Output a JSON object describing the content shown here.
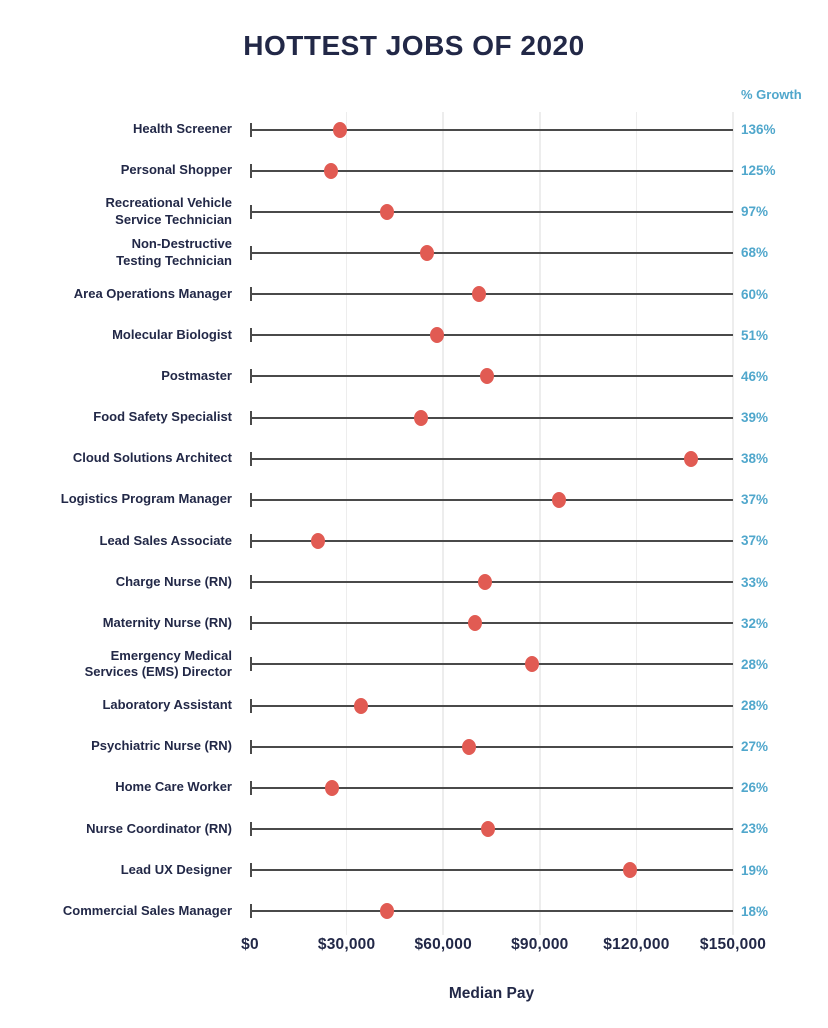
{
  "colors": {
    "navy": "#222847",
    "growth_blue": "#50a7cc",
    "dot_red": "#e15b53",
    "row_line_gray": "#4a4a4a",
    "gridline_gray": "#ededed",
    "background": "#ffffff"
  },
  "chart_data": {
    "type": "scatter",
    "subtype": "lollipop-dot-plot",
    "title": "HOTTEST JOBS OF 2020",
    "xlabel": "Median Pay",
    "right_column_header": "% Growth",
    "xlim": [
      0,
      150000
    ],
    "grid": true,
    "legend_position": "none",
    "x_ticks": [
      {
        "value": 0,
        "label": "$0"
      },
      {
        "value": 30000,
        "label": "$30,000"
      },
      {
        "value": 60000,
        "label": "$60,000"
      },
      {
        "value": 90000,
        "label": "$90,000"
      },
      {
        "value": 120000,
        "label": "$120,000"
      },
      {
        "value": 150000,
        "label": "$150,000"
      }
    ],
    "jobs": [
      {
        "label": "Health Screener",
        "median_pay": 28000,
        "growth": "136%"
      },
      {
        "label": "Personal Shopper",
        "median_pay": 25000,
        "growth": "125%"
      },
      {
        "label": "Recreational Vehicle\nService Technician",
        "median_pay": 42500,
        "growth": "97%"
      },
      {
        "label": "Non-Destructive\nTesting Technician",
        "median_pay": 55000,
        "growth": "68%"
      },
      {
        "label": "Area Operations Manager",
        "median_pay": 71000,
        "growth": "60%"
      },
      {
        "label": "Molecular Biologist",
        "median_pay": 58000,
        "growth": "51%"
      },
      {
        "label": "Postmaster",
        "median_pay": 73500,
        "growth": "46%"
      },
      {
        "label": "Food Safety Specialist",
        "median_pay": 53000,
        "growth": "39%"
      },
      {
        "label": "Cloud Solutions Architect",
        "median_pay": 137000,
        "growth": "38%"
      },
      {
        "label": "Logistics Program Manager",
        "median_pay": 96000,
        "growth": "37%"
      },
      {
        "label": "Lead Sales Associate",
        "median_pay": 21000,
        "growth": "37%"
      },
      {
        "label": "Charge Nurse (RN)",
        "median_pay": 73000,
        "growth": "33%"
      },
      {
        "label": "Maternity Nurse (RN)",
        "median_pay": 70000,
        "growth": "32%"
      },
      {
        "label": "Emergency Medical\nServices (EMS) Director",
        "median_pay": 87500,
        "growth": "28%"
      },
      {
        "label": "Laboratory Assistant",
        "median_pay": 34500,
        "growth": "28%"
      },
      {
        "label": "Psychiatric Nurse (RN)",
        "median_pay": 68000,
        "growth": "27%"
      },
      {
        "label": "Home Care Worker",
        "median_pay": 25500,
        "growth": "26%"
      },
      {
        "label": "Nurse Coordinator (RN)",
        "median_pay": 74000,
        "growth": "23%"
      },
      {
        "label": "Lead UX Designer",
        "median_pay": 118000,
        "growth": "19%"
      },
      {
        "label": "Commercial Sales Manager",
        "median_pay": 42500,
        "growth": "18%"
      }
    ]
  }
}
